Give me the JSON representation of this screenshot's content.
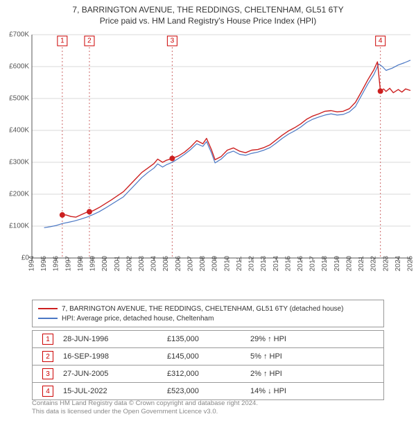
{
  "title_line1": "7, BARRINGTON AVENUE, THE REDDINGS, CHELTENHAM, GL51 6TY",
  "title_line2": "Price paid vs. HM Land Registry's House Price Index (HPI)",
  "chart": {
    "type": "line",
    "background_color": "#ffffff",
    "axis_color": "#555555",
    "grid_color": "#d9d9d9",
    "x_years": [
      1994,
      1995,
      1996,
      1997,
      1998,
      1999,
      2000,
      2001,
      2002,
      2003,
      2004,
      2005,
      2006,
      2007,
      2008,
      2009,
      2010,
      2011,
      2012,
      2013,
      2014,
      2015,
      2016,
      2017,
      2018,
      2019,
      2020,
      2021,
      2022,
      2023,
      2024,
      2025
    ],
    "x_min": 1994,
    "x_max": 2025,
    "y_min": 0,
    "y_max": 700000,
    "y_ticks": [
      0,
      100000,
      200000,
      300000,
      400000,
      500000,
      600000,
      700000
    ],
    "y_tick_labels": [
      "£0",
      "£100K",
      "£200K",
      "£300K",
      "£400K",
      "£500K",
      "£600K",
      "£700K"
    ],
    "series": [
      {
        "name": "hpi",
        "color": "#4a77c4",
        "width": 1.2,
        "points": [
          [
            1995.0,
            95000
          ],
          [
            1995.5,
            98000
          ],
          [
            1996.0,
            102000
          ],
          [
            1996.5,
            108000
          ],
          [
            1997.0,
            112000
          ],
          [
            1997.5,
            116000
          ],
          [
            1998.0,
            122000
          ],
          [
            1998.5,
            128000
          ],
          [
            1999.0,
            136000
          ],
          [
            1999.5,
            145000
          ],
          [
            2000.0,
            156000
          ],
          [
            2000.5,
            168000
          ],
          [
            2001.0,
            180000
          ],
          [
            2001.5,
            192000
          ],
          [
            2002.0,
            212000
          ],
          [
            2002.5,
            232000
          ],
          [
            2003.0,
            252000
          ],
          [
            2003.5,
            268000
          ],
          [
            2004.0,
            282000
          ],
          [
            2004.3,
            295000
          ],
          [
            2004.7,
            285000
          ],
          [
            2005.0,
            292000
          ],
          [
            2005.5,
            300000
          ],
          [
            2006.0,
            312000
          ],
          [
            2006.5,
            325000
          ],
          [
            2007.0,
            340000
          ],
          [
            2007.5,
            358000
          ],
          [
            2008.0,
            350000
          ],
          [
            2008.3,
            365000
          ],
          [
            2008.7,
            330000
          ],
          [
            2009.0,
            298000
          ],
          [
            2009.5,
            310000
          ],
          [
            2010.0,
            328000
          ],
          [
            2010.5,
            335000
          ],
          [
            2011.0,
            325000
          ],
          [
            2011.5,
            322000
          ],
          [
            2012.0,
            328000
          ],
          [
            2012.5,
            332000
          ],
          [
            2013.0,
            338000
          ],
          [
            2013.5,
            346000
          ],
          [
            2014.0,
            360000
          ],
          [
            2014.5,
            375000
          ],
          [
            2015.0,
            388000
          ],
          [
            2015.5,
            398000
          ],
          [
            2016.0,
            410000
          ],
          [
            2016.5,
            425000
          ],
          [
            2017.0,
            435000
          ],
          [
            2017.5,
            442000
          ],
          [
            2018.0,
            448000
          ],
          [
            2018.5,
            452000
          ],
          [
            2019.0,
            448000
          ],
          [
            2019.5,
            450000
          ],
          [
            2020.0,
            458000
          ],
          [
            2020.5,
            475000
          ],
          [
            2021.0,
            510000
          ],
          [
            2021.5,
            545000
          ],
          [
            2022.0,
            575000
          ],
          [
            2022.4,
            608000
          ],
          [
            2022.7,
            600000
          ],
          [
            2023.0,
            588000
          ],
          [
            2023.5,
            595000
          ],
          [
            2024.0,
            605000
          ],
          [
            2024.5,
            612000
          ],
          [
            2025.0,
            620000
          ]
        ]
      },
      {
        "name": "property",
        "color": "#cc1f1f",
        "width": 1.4,
        "points": [
          [
            1996.49,
            135000
          ],
          [
            1996.8,
            135000
          ],
          [
            1997.2,
            130000
          ],
          [
            1997.6,
            128000
          ],
          [
            1998.0,
            135000
          ],
          [
            1998.4,
            142000
          ],
          [
            1998.71,
            145000
          ],
          [
            1999.0,
            148000
          ],
          [
            1999.5,
            158000
          ],
          [
            2000.0,
            170000
          ],
          [
            2000.5,
            182000
          ],
          [
            2001.0,
            195000
          ],
          [
            2001.5,
            208000
          ],
          [
            2002.0,
            228000
          ],
          [
            2002.5,
            248000
          ],
          [
            2003.0,
            268000
          ],
          [
            2003.5,
            282000
          ],
          [
            2004.0,
            296000
          ],
          [
            2004.3,
            310000
          ],
          [
            2004.7,
            300000
          ],
          [
            2005.0,
            306000
          ],
          [
            2005.49,
            312000
          ],
          [
            2006.0,
            320000
          ],
          [
            2006.5,
            332000
          ],
          [
            2007.0,
            348000
          ],
          [
            2007.5,
            368000
          ],
          [
            2008.0,
            358000
          ],
          [
            2008.3,
            375000
          ],
          [
            2008.7,
            340000
          ],
          [
            2009.0,
            308000
          ],
          [
            2009.5,
            318000
          ],
          [
            2010.0,
            338000
          ],
          [
            2010.5,
            345000
          ],
          [
            2011.0,
            335000
          ],
          [
            2011.5,
            330000
          ],
          [
            2012.0,
            338000
          ],
          [
            2012.5,
            340000
          ],
          [
            2013.0,
            346000
          ],
          [
            2013.5,
            355000
          ],
          [
            2014.0,
            370000
          ],
          [
            2014.5,
            385000
          ],
          [
            2015.0,
            398000
          ],
          [
            2015.5,
            408000
          ],
          [
            2016.0,
            420000
          ],
          [
            2016.5,
            435000
          ],
          [
            2017.0,
            445000
          ],
          [
            2017.5,
            452000
          ],
          [
            2018.0,
            460000
          ],
          [
            2018.5,
            462000
          ],
          [
            2019.0,
            458000
          ],
          [
            2019.5,
            460000
          ],
          [
            2020.0,
            468000
          ],
          [
            2020.5,
            488000
          ],
          [
            2021.0,
            522000
          ],
          [
            2021.5,
            558000
          ],
          [
            2022.0,
            590000
          ],
          [
            2022.3,
            615000
          ],
          [
            2022.54,
            523000
          ],
          [
            2022.8,
            530000
          ],
          [
            2023.0,
            522000
          ],
          [
            2023.3,
            532000
          ],
          [
            2023.6,
            518000
          ],
          [
            2024.0,
            528000
          ],
          [
            2024.3,
            520000
          ],
          [
            2024.6,
            530000
          ],
          [
            2025.0,
            525000
          ]
        ]
      }
    ],
    "sale_dots": {
      "color": "#cc1f1f",
      "radius": 4,
      "points": [
        [
          1996.49,
          135000
        ],
        [
          1998.71,
          145000
        ],
        [
          2005.49,
          312000
        ],
        [
          2022.54,
          523000
        ]
      ]
    },
    "event_markers": [
      {
        "num": "1",
        "x": 1996.49,
        "line_color": "#cc6666"
      },
      {
        "num": "2",
        "x": 1998.71,
        "line_color": "#cc6666"
      },
      {
        "num": "3",
        "x": 2005.49,
        "line_color": "#cc6666"
      },
      {
        "num": "4",
        "x": 2022.54,
        "line_color": "#cc6666"
      }
    ]
  },
  "legend": {
    "items": [
      {
        "color": "#cc1f1f",
        "label": "7, BARRINGTON AVENUE, THE REDDINGS, CHELTENHAM, GL51 6TY (detached house)"
      },
      {
        "color": "#4a77c4",
        "label": "HPI: Average price, detached house, Cheltenham"
      }
    ]
  },
  "transactions": [
    {
      "num": "1",
      "date": "28-JUN-1996",
      "price": "£135,000",
      "delta": "29% ↑ HPI"
    },
    {
      "num": "2",
      "date": "16-SEP-1998",
      "price": "£145,000",
      "delta": "5% ↑ HPI"
    },
    {
      "num": "3",
      "date": "27-JUN-2005",
      "price": "£312,000",
      "delta": "2% ↑ HPI"
    },
    {
      "num": "4",
      "date": "15-JUL-2022",
      "price": "£523,000",
      "delta": "14% ↓ HPI"
    }
  ],
  "footer_line1": "Contains HM Land Registry data © Crown copyright and database right 2024.",
  "footer_line2": "This data is licensed under the Open Government Licence v3.0."
}
